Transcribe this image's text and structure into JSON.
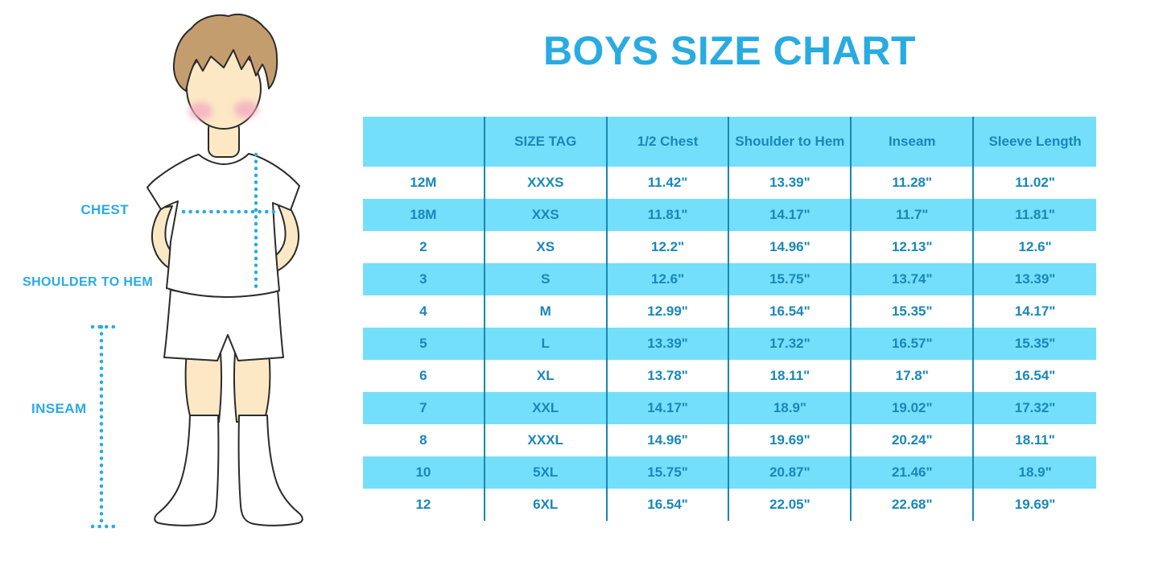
{
  "title": "BOYS SIZE CHART",
  "colors": {
    "title_blue": "#29ABE2",
    "stripe_blue": "#74DFFA",
    "table_text_blue": "#1987B8",
    "divider_blue": "#1987B8",
    "dotted_line_blue": "#29ABE2",
    "skin": "#FCE8C5",
    "hair_brown": "#C49D6F",
    "cheek_pink": "#F2A8C2",
    "outline": "#2b2b2b"
  },
  "figure": {
    "description": "boy-in-tshirt-and-shorts-measurement-guide",
    "labels": {
      "chest": "CHEST",
      "shoulder_to_hem": "SHOULDER TO HEM",
      "inseam": "INSEAM"
    }
  },
  "chart_data": {
    "type": "table",
    "title": "BOYS SIZE CHART",
    "units": "inches",
    "columns": [
      "",
      "SIZE TAG",
      "1/2 Chest",
      "Shoulder to Hem",
      "Inseam",
      "Sleeve Length"
    ],
    "rows": [
      [
        "12M",
        "XXXS",
        "11.42\"",
        "13.39\"",
        "11.28\"",
        "11.02\""
      ],
      [
        "18M",
        "XXS",
        "11.81\"",
        "14.17\"",
        "11.7\"",
        "11.81\""
      ],
      [
        "2",
        "XS",
        "12.2\"",
        "14.96\"",
        "12.13\"",
        "12.6\""
      ],
      [
        "3",
        "S",
        "12.6\"",
        "15.75\"",
        "13.74\"",
        "13.39\""
      ],
      [
        "4",
        "M",
        "12.99\"",
        "16.54\"",
        "15.35\"",
        "14.17\""
      ],
      [
        "5",
        "L",
        "13.39\"",
        "17.32\"",
        "16.57\"",
        "15.35\""
      ],
      [
        "6",
        "XL",
        "13.78\"",
        "18.11\"",
        "17.8\"",
        "16.54\""
      ],
      [
        "7",
        "XXL",
        "14.17\"",
        "18.9\"",
        "19.02\"",
        "17.32\""
      ],
      [
        "8",
        "XXXL",
        "14.96\"",
        "19.69\"",
        "20.24\"",
        "18.11\""
      ],
      [
        "10",
        "5XL",
        "15.75\"",
        "20.87\"",
        "21.46\"",
        "18.9\""
      ],
      [
        "12",
        "6XL",
        "16.54\"",
        "22.05\"",
        "22.68\"",
        "19.69\""
      ]
    ],
    "row_striping": "header blue, then rows alternate white/blue starting white"
  }
}
